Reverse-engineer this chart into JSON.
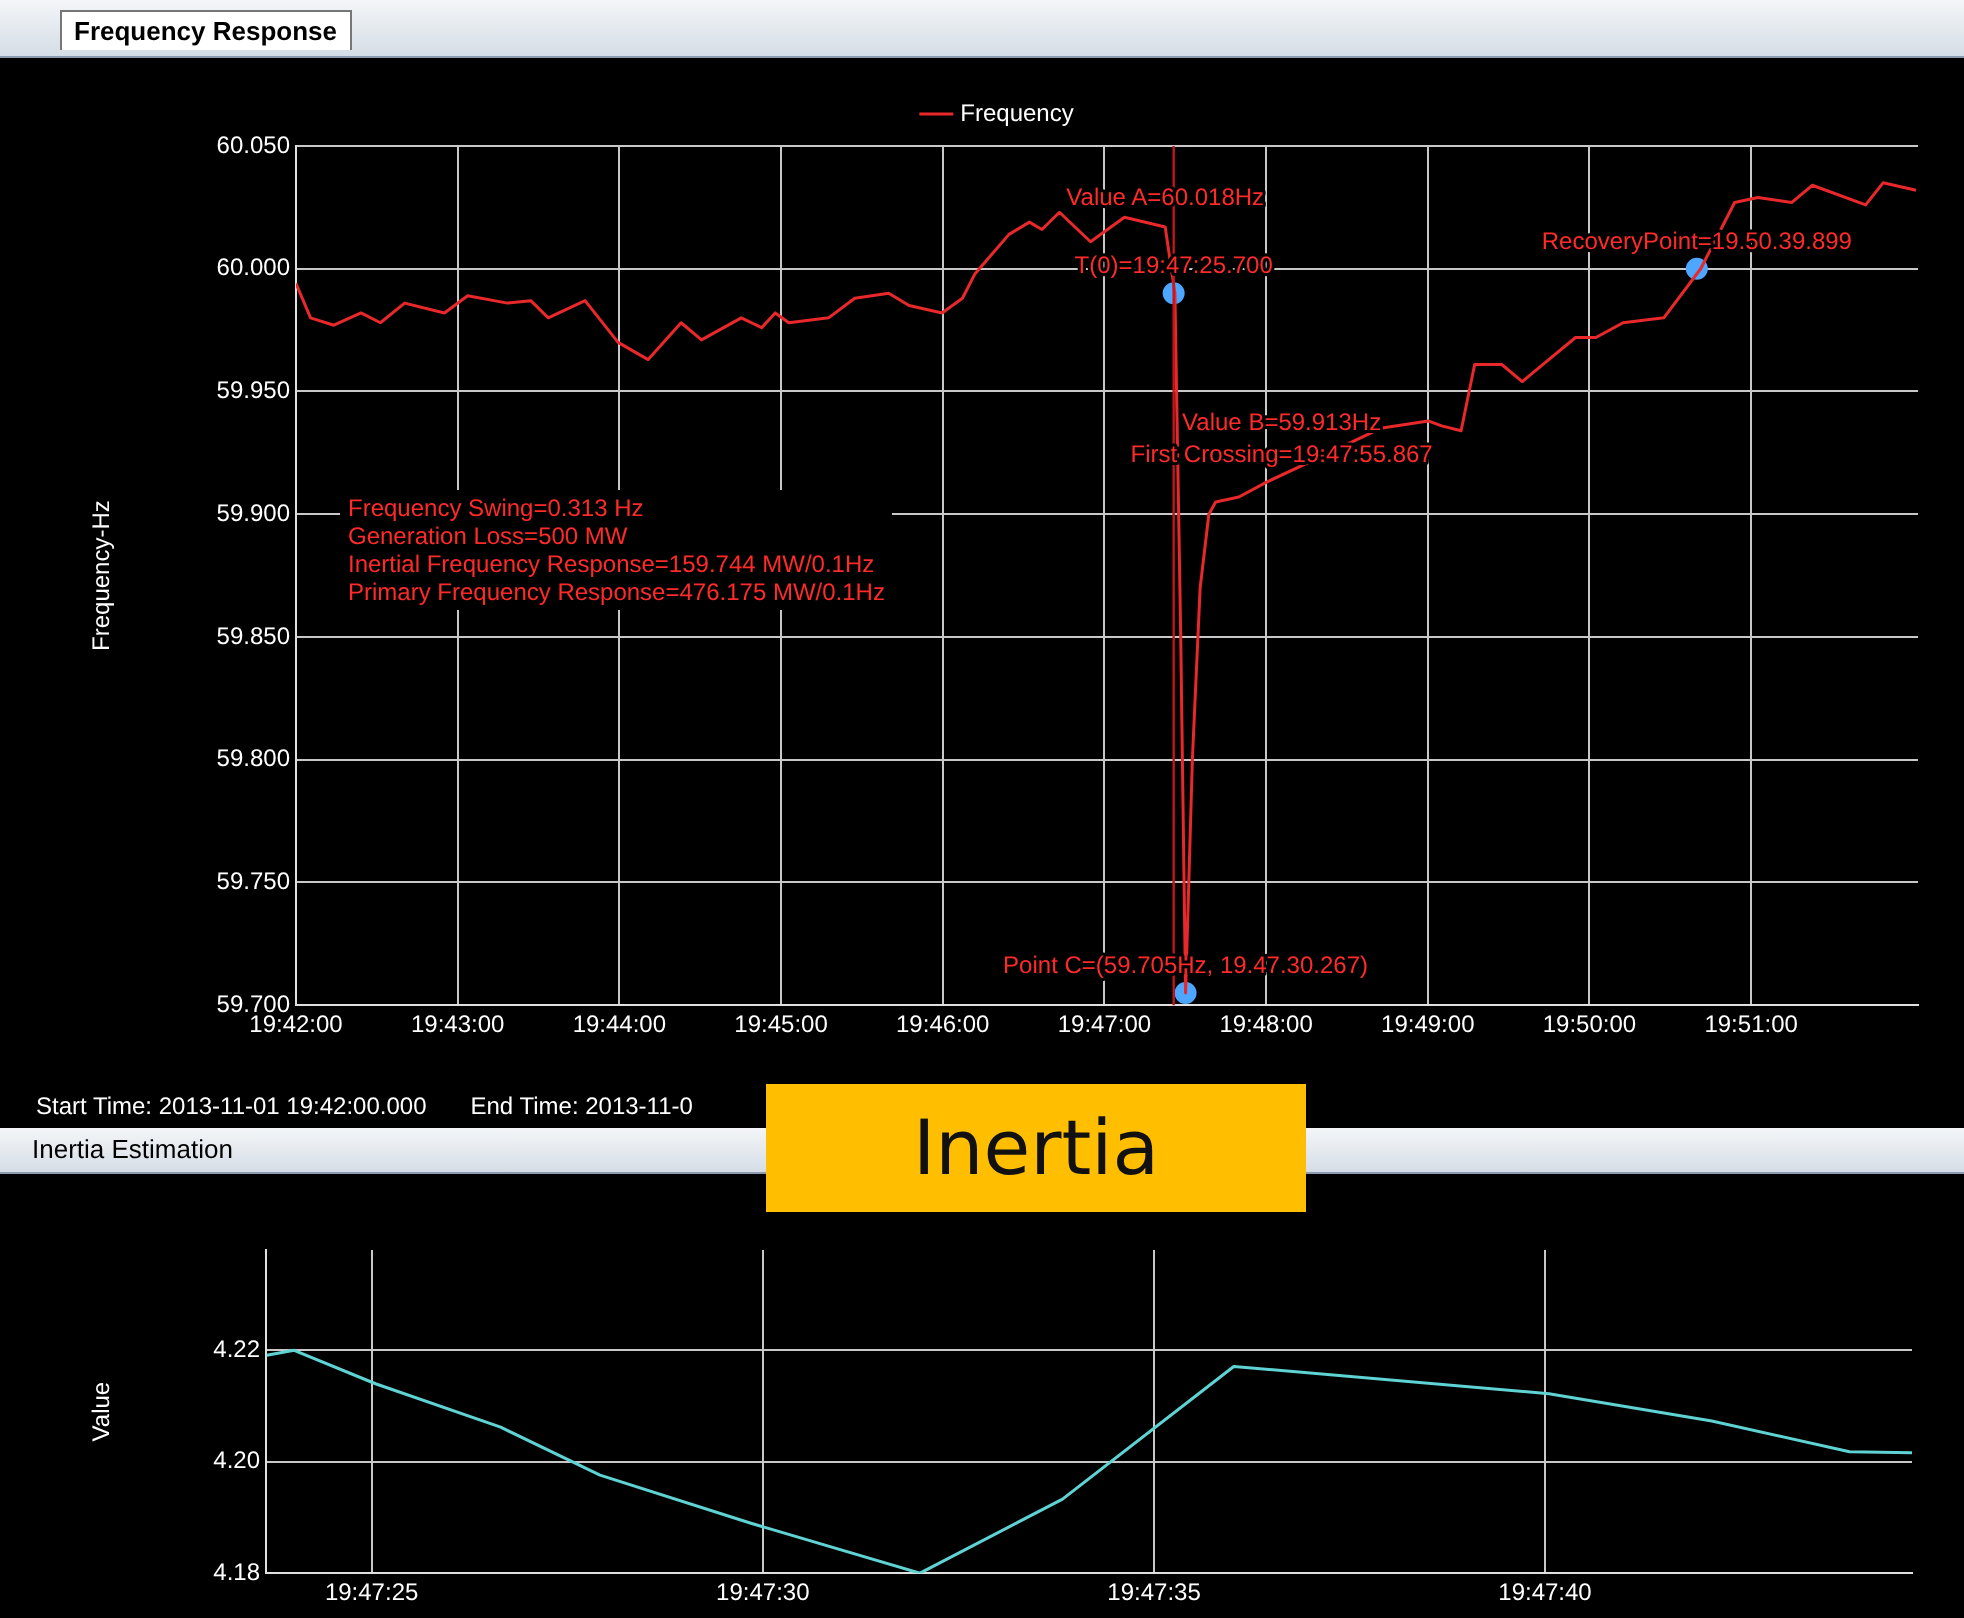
{
  "chart_data": [
    {
      "type": "line",
      "title": "Frequency Response",
      "ylabel": "Frequency-Hz",
      "legend": "top",
      "grid": true,
      "xlim": [
        19.7,
        19.8672
      ],
      "xticks": [
        {
          "value": 19.7,
          "label": "19:42:00"
        },
        {
          "value": 19.716667,
          "label": "19:43:00"
        },
        {
          "value": 19.733333,
          "label": "19:44:00"
        },
        {
          "value": 19.75,
          "label": "19:45:00"
        },
        {
          "value": 19.766667,
          "label": "19:46:00"
        },
        {
          "value": 19.783333,
          "label": "19:47:00"
        },
        {
          "value": 19.8,
          "label": "19:48:00"
        },
        {
          "value": 19.816667,
          "label": "19:49:00"
        },
        {
          "value": 19.833333,
          "label": "19:50:00"
        },
        {
          "value": 19.85,
          "label": "19:51:00"
        }
      ],
      "ylim": [
        59.7,
        60.05
      ],
      "yticks": [
        {
          "value": 59.7,
          "label": "59.700"
        },
        {
          "value": 59.75,
          "label": "59.750"
        },
        {
          "value": 59.8,
          "label": "59.800"
        },
        {
          "value": 59.85,
          "label": "59.850"
        },
        {
          "value": 59.9,
          "label": "59.900"
        },
        {
          "value": 59.95,
          "label": "59.950"
        },
        {
          "value": 60.0,
          "label": "60.000"
        },
        {
          "value": 60.05,
          "label": "60.050"
        }
      ],
      "series": [
        {
          "name": "Frequency",
          "color": "#e8282a",
          "x": [
            19.7,
            19.7015,
            19.7039,
            19.7067,
            19.7087,
            19.7112,
            19.7153,
            19.7177,
            19.7218,
            19.7242,
            19.726,
            19.7298,
            19.7332,
            19.7363,
            19.7397,
            19.7418,
            19.7459,
            19.748,
            19.7494,
            19.7508,
            19.7549,
            19.7576,
            19.7611,
            19.7632,
            19.7666,
            19.7687,
            19.77,
            19.7735,
            19.7756,
            19.7769,
            19.7787,
            19.7819,
            19.7854,
            19.7896,
            19.7906,
            19.7912,
            19.7917,
            19.7924,
            19.7932,
            19.7941,
            19.7948,
            19.7972,
            19.8,
            19.8049,
            19.8118,
            19.8167,
            19.8181,
            19.8201,
            19.8215,
            19.8243,
            19.8264,
            19.8319,
            19.834,
            19.8368,
            19.841,
            19.8448,
            19.8483,
            19.8507,
            19.8542,
            19.8563,
            19.8618,
            19.8636,
            19.867
          ],
          "values": [
            59.994,
            59.98,
            59.977,
            59.982,
            59.978,
            59.986,
            59.982,
            59.989,
            59.986,
            59.987,
            59.98,
            59.987,
            59.97,
            59.963,
            59.978,
            59.971,
            59.98,
            59.976,
            59.982,
            59.978,
            59.98,
            59.988,
            59.99,
            59.985,
            59.982,
            59.988,
            59.998,
            60.014,
            60.019,
            60.016,
            60.023,
            60.011,
            60.021,
            60.017,
            59.99,
            59.85,
            59.705,
            59.8,
            59.87,
            59.9,
            59.905,
            59.907,
            59.913,
            59.922,
            59.935,
            59.938,
            59.936,
            59.934,
            59.961,
            59.961,
            59.954,
            59.972,
            59.972,
            59.978,
            59.98,
            60.0,
            60.027,
            60.029,
            60.027,
            60.034,
            60.026,
            60.035,
            60.032
          ]
        },
        {
          "type": "scatter",
          "marker": "circle",
          "color": "#4da6ff",
          "x": [
            19.790472,
            19.7917,
            19.8444
          ],
          "values": [
            59.99,
            59.705,
            60.0
          ]
        }
      ],
      "ref_lines": [
        {
          "axis": "x",
          "value": 19.790472,
          "color": "#c0181b"
        }
      ],
      "annotations": [
        {
          "text": "Value A=60.018Hz",
          "x": 19.7896,
          "y": 60.018
        },
        {
          "text": "T(0)=19:47:25.700",
          "x": 19.790472,
          "y": 59.99
        },
        {
          "text": "Value B=59.913Hz",
          "x": 19.8016,
          "y": 59.913
        },
        {
          "text": "First Crossing=19:47:55.867",
          "x": 19.8016,
          "y": 59.913
        },
        {
          "text": "Point C=(59.705Hz, 19.47.30.267)",
          "x": 19.7917,
          "y": 59.705
        },
        {
          "text": "RecoveryPoint=19.50.39.899",
          "x": 19.8444,
          "y": 60.0
        },
        "Frequency Swing=0.313 Hz",
        "Generation Loss=500 MW",
        "Inertial Frequency Response=159.744 MW/0.1Hz",
        "Primary Frequency Response=476.175 MW/0.1Hz",
        "Start Time: 2013-11-01 19:42:00.000",
        "End Time: 2013-11-0"
      ]
    },
    {
      "type": "line",
      "title": "Inertia Estimation",
      "subtitle": "Inertia",
      "ylabel": "Value",
      "grid": true,
      "xlim": [
        19.789903,
        19.795747
      ],
      "xticks": [
        {
          "value": 19.790278,
          "label": "19:47:25"
        },
        {
          "value": 19.791667,
          "label": "19:47:30"
        },
        {
          "value": 19.793056,
          "label": "19:47:35"
        },
        {
          "value": 19.794444,
          "label": "19:47:40"
        }
      ],
      "ylim": [
        4.18,
        4.238
      ],
      "yticks": [
        4.18,
        {
          "value": 4.2,
          "label": "4.20"
        },
        4.22
      ],
      "series": [
        {
          "color": "#5fd3d3",
          "x": [
            19.789906,
            19.790003,
            19.790292,
            19.790736,
            19.791089,
            19.791622,
            19.792225,
            19.792731,
            19.793339,
            19.794458,
            19.795036,
            19.795525,
            19.795747
          ],
          "values": [
            4.2191,
            4.22,
            4.214,
            4.2062,
            4.1976,
            4.189,
            4.18,
            4.1933,
            4.2171,
            4.2122,
            4.2073,
            4.2018,
            4.2016
          ]
        }
      ]
    }
  ]
}
